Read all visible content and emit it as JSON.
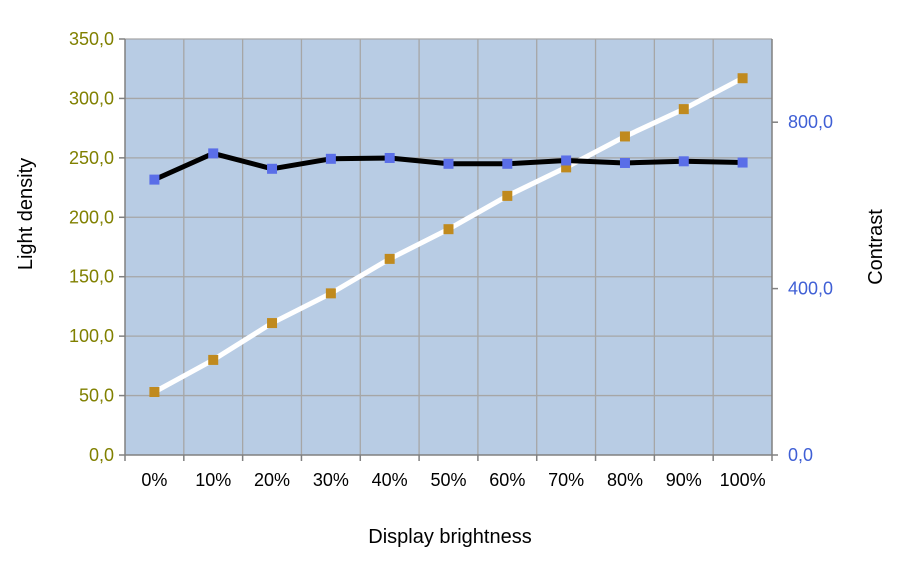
{
  "chart_data": {
    "type": "line",
    "categories": [
      "0%",
      "10%",
      "20%",
      "30%",
      "40%",
      "50%",
      "60%",
      "70%",
      "80%",
      "90%",
      "100%"
    ],
    "xlabel": "Display brightness",
    "ylabel": "Light density",
    "y2label": "Contrast",
    "ylim": [
      0,
      350
    ],
    "y2lim": [
      0,
      1000
    ],
    "yticks": [
      "0,0",
      "50,0",
      "100,0",
      "150,0",
      "200,0",
      "250,0",
      "300,0",
      "350,0"
    ],
    "y2ticks": [
      "0,0",
      "400,0",
      "800,0"
    ],
    "grid": true,
    "series": [
      {
        "axis": "left",
        "values": [
          53,
          80,
          111,
          136,
          165,
          190,
          218,
          242,
          268,
          291,
          317
        ]
      },
      {
        "axis": "right",
        "values": [
          662,
          725,
          688,
          712,
          714,
          700,
          700,
          708,
          702,
          706,
          703
        ]
      }
    ],
    "colors": {
      "plot_bg": "#b8cce4",
      "grid": "#a6a6a6",
      "left_axis_text": "#808000",
      "right_axis_text": "#3f5fd5",
      "left_line": "#ffffff",
      "left_marker": "#c08a1e",
      "right_line": "#000000",
      "right_marker": "#5a6ee8"
    }
  }
}
